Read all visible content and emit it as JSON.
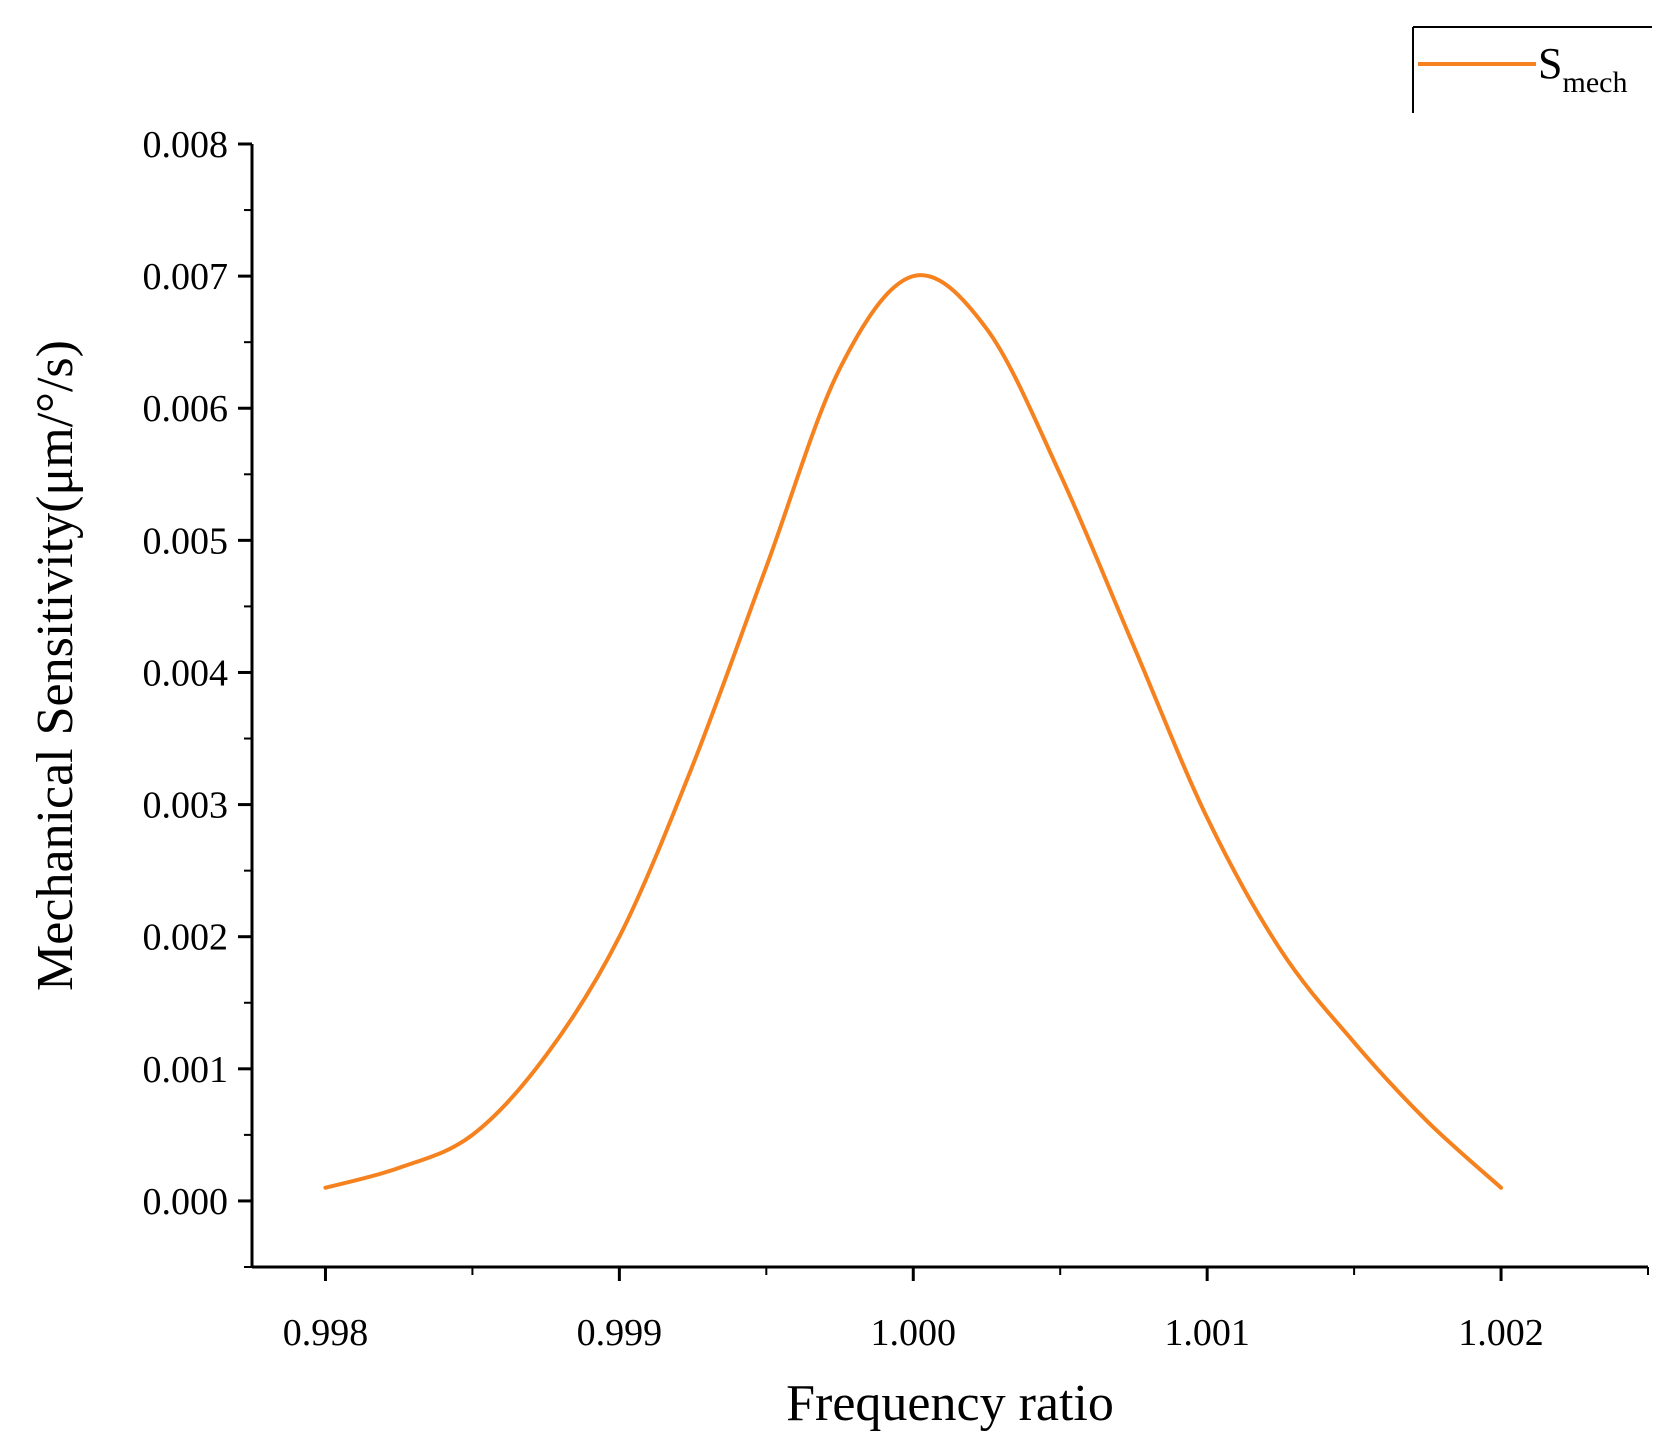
{
  "chart_data": {
    "type": "line",
    "title": "",
    "xlabel": "Frequency ratio",
    "ylabel": "Mechanical Sensitivity(μm/°/s)",
    "xlim": [
      0.99775,
      1.0025
    ],
    "ylim": [
      -0.0005,
      0.008
    ],
    "x_ticks": [
      0.998,
      0.999,
      1.0,
      1.001,
      1.002
    ],
    "x_tick_labels": [
      "0.998",
      "0.999",
      "1.000",
      "1.001",
      "1.002"
    ],
    "y_ticks": [
      0.0,
      0.001,
      0.002,
      0.003,
      0.004,
      0.005,
      0.006,
      0.007,
      0.008
    ],
    "y_tick_labels": [
      "0.000",
      "0.001",
      "0.002",
      "0.003",
      "0.004",
      "0.005",
      "0.006",
      "0.007",
      "0.008"
    ],
    "legend": {
      "position": "top-right",
      "main": "S",
      "sub": "mech"
    },
    "series": [
      {
        "name": "S_mech",
        "color": "#f5821f",
        "x": [
          0.998,
          0.99825,
          0.9985,
          0.99875,
          0.999,
          0.99925,
          0.9995,
          0.99975,
          1.0,
          1.00025,
          1.0005,
          1.00075,
          1.001,
          1.00125,
          1.0015,
          1.00175,
          1.002
        ],
        "y": [
          0.0001,
          0.00025,
          0.0005,
          0.0011,
          0.002,
          0.0033,
          0.0048,
          0.0063,
          0.007,
          0.0066,
          0.0055,
          0.0042,
          0.0029,
          0.0019,
          0.0012,
          0.0006,
          0.0001
        ]
      }
    ]
  }
}
